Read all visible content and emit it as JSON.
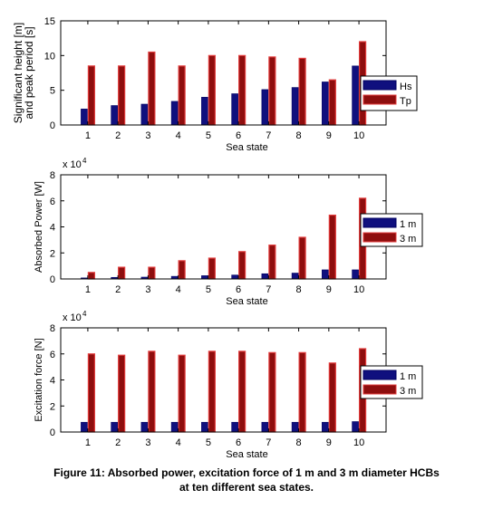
{
  "caption": {
    "line1": "Figure 11: Absorbed power, excitation force of 1 m and 3 m diameter HCBs",
    "line2": "at ten different sea states."
  },
  "colors": {
    "series_a": "#10107e",
    "series_b": "#8e0e0e",
    "series_b_edge": "#e23c3c"
  },
  "chart_data": [
    {
      "type": "bar",
      "categories": [
        "1",
        "2",
        "3",
        "4",
        "5",
        "6",
        "7",
        "8",
        "9",
        "10"
      ],
      "xlabel": "Sea state",
      "ylabel": [
        "Significant height [m]",
        "and peak period [s]"
      ],
      "ylim": [
        0,
        15
      ],
      "yticks": [
        "0",
        "5",
        "10",
        "15"
      ],
      "exponent": "",
      "legend_position": "right",
      "series": [
        {
          "name": "Hs",
          "values": [
            2.3,
            2.8,
            3.0,
            3.4,
            4.0,
            4.5,
            5.1,
            5.4,
            6.2,
            8.5
          ]
        },
        {
          "name": "Tp",
          "values": [
            8.5,
            8.5,
            10.5,
            8.5,
            10.0,
            10.0,
            9.8,
            9.6,
            6.5,
            12.0
          ]
        }
      ]
    },
    {
      "type": "bar",
      "categories": [
        "1",
        "2",
        "3",
        "4",
        "5",
        "6",
        "7",
        "8",
        "9",
        "10"
      ],
      "xlabel": "Sea state",
      "ylabel": [
        "Absorbed Power [W]"
      ],
      "ylim": [
        0,
        8
      ],
      "yticks": [
        "0",
        "2",
        "4",
        "6",
        "8"
      ],
      "exponent": "x 10",
      "exponent_power": "4",
      "legend_position": "right",
      "series": [
        {
          "name": "1 m",
          "values": [
            0.08,
            0.12,
            0.14,
            0.2,
            0.25,
            0.3,
            0.4,
            0.45,
            0.7,
            0.7
          ]
        },
        {
          "name": "3 m",
          "values": [
            0.5,
            0.9,
            0.9,
            1.4,
            1.6,
            2.1,
            2.6,
            3.2,
            4.9,
            6.2
          ]
        }
      ]
    },
    {
      "type": "bar",
      "categories": [
        "1",
        "2",
        "3",
        "4",
        "5",
        "6",
        "7",
        "8",
        "9",
        "10"
      ],
      "xlabel": "Sea state",
      "ylabel": [
        "Excitation force [N]"
      ],
      "ylim": [
        0,
        8
      ],
      "yticks": [
        "0",
        "2",
        "4",
        "6",
        "8"
      ],
      "exponent": "x 10",
      "exponent_power": "4",
      "legend_position": "right",
      "series": [
        {
          "name": "1 m",
          "values": [
            0.75,
            0.75,
            0.75,
            0.75,
            0.75,
            0.75,
            0.75,
            0.75,
            0.75,
            0.8
          ]
        },
        {
          "name": "3 m",
          "values": [
            6.0,
            5.9,
            6.2,
            5.9,
            6.2,
            6.2,
            6.1,
            6.1,
            5.3,
            6.4
          ]
        }
      ]
    }
  ]
}
